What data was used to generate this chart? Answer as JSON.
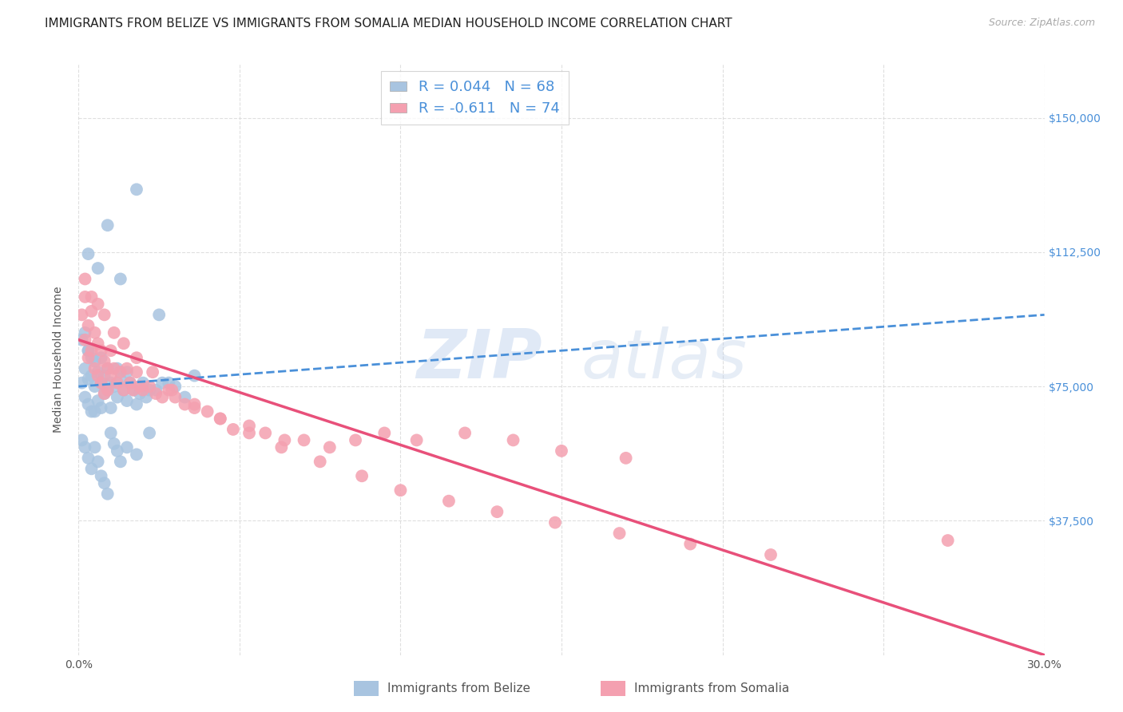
{
  "title": "IMMIGRANTS FROM BELIZE VS IMMIGRANTS FROM SOMALIA MEDIAN HOUSEHOLD INCOME CORRELATION CHART",
  "source": "Source: ZipAtlas.com",
  "ylabel": "Median Household Income",
  "xlim": [
    0.0,
    0.3
  ],
  "ylim": [
    0,
    165000
  ],
  "xticks": [
    0.0,
    0.05,
    0.1,
    0.15,
    0.2,
    0.25,
    0.3
  ],
  "xticklabels": [
    "0.0%",
    "",
    "",
    "",
    "",
    "",
    "30.0%"
  ],
  "ytick_positions": [
    37500,
    75000,
    112500,
    150000
  ],
  "ytick_labels": [
    "$37,500",
    "$75,000",
    "$112,500",
    "$150,000"
  ],
  "belize_color": "#a8c4e0",
  "somalia_color": "#f4a0b0",
  "belize_line_color": "#4a90d9",
  "somalia_line_color": "#e8507a",
  "belize_R": 0.044,
  "belize_N": 68,
  "somalia_R": -0.611,
  "somalia_N": 74,
  "legend_label_belize": "Immigrants from Belize",
  "legend_label_somalia": "Immigrants from Somalia",
  "watermark_zip": "ZIP",
  "watermark_atlas": "atlas",
  "background_color": "#ffffff",
  "grid_color": "#d8d8d8",
  "title_fontsize": 11,
  "axis_label_fontsize": 10,
  "tick_fontsize": 10,
  "legend_fontsize": 13,
  "source_fontsize": 9,
  "belize_line_y0": 75000,
  "belize_line_y1": 95000,
  "somalia_line_y0": 88000,
  "somalia_line_y1": 0,
  "belize_scatter_x": [
    0.001,
    0.002,
    0.002,
    0.003,
    0.003,
    0.003,
    0.004,
    0.004,
    0.005,
    0.005,
    0.005,
    0.006,
    0.006,
    0.007,
    0.007,
    0.007,
    0.008,
    0.008,
    0.009,
    0.009,
    0.01,
    0.01,
    0.011,
    0.012,
    0.012,
    0.013,
    0.014,
    0.015,
    0.015,
    0.016,
    0.017,
    0.018,
    0.019,
    0.02,
    0.021,
    0.022,
    0.024,
    0.026,
    0.028,
    0.03,
    0.033,
    0.036,
    0.001,
    0.002,
    0.003,
    0.004,
    0.005,
    0.006,
    0.007,
    0.008,
    0.009,
    0.01,
    0.011,
    0.012,
    0.013,
    0.015,
    0.018,
    0.022,
    0.003,
    0.006,
    0.009,
    0.013,
    0.018,
    0.025,
    0.001,
    0.002,
    0.003,
    0.004
  ],
  "belize_scatter_y": [
    76000,
    80000,
    72000,
    85000,
    77000,
    70000,
    78000,
    68000,
    82000,
    75000,
    68000,
    79000,
    71000,
    83000,
    76000,
    69000,
    78000,
    73000,
    80000,
    74000,
    76000,
    69000,
    75000,
    80000,
    72000,
    77000,
    74000,
    79000,
    71000,
    76000,
    74000,
    70000,
    73000,
    76000,
    72000,
    74000,
    74000,
    76000,
    76000,
    75000,
    72000,
    78000,
    60000,
    58000,
    55000,
    52000,
    58000,
    54000,
    50000,
    48000,
    45000,
    62000,
    59000,
    57000,
    54000,
    58000,
    56000,
    62000,
    112000,
    108000,
    120000,
    105000,
    130000,
    95000,
    88000,
    90000,
    85000,
    83000
  ],
  "somalia_scatter_x": [
    0.001,
    0.002,
    0.002,
    0.003,
    0.003,
    0.004,
    0.004,
    0.005,
    0.005,
    0.006,
    0.006,
    0.007,
    0.007,
    0.008,
    0.008,
    0.009,
    0.009,
    0.01,
    0.01,
    0.011,
    0.012,
    0.013,
    0.014,
    0.015,
    0.016,
    0.017,
    0.018,
    0.019,
    0.02,
    0.022,
    0.024,
    0.026,
    0.028,
    0.03,
    0.033,
    0.036,
    0.04,
    0.044,
    0.048,
    0.053,
    0.058,
    0.064,
    0.07,
    0.078,
    0.086,
    0.095,
    0.105,
    0.12,
    0.135,
    0.15,
    0.17,
    0.27,
    0.002,
    0.004,
    0.006,
    0.008,
    0.011,
    0.014,
    0.018,
    0.023,
    0.029,
    0.036,
    0.044,
    0.053,
    0.063,
    0.075,
    0.088,
    0.1,
    0.115,
    0.13,
    0.148,
    0.168,
    0.19,
    0.215
  ],
  "somalia_scatter_y": [
    95000,
    100000,
    88000,
    92000,
    83000,
    96000,
    85000,
    90000,
    80000,
    87000,
    78000,
    85000,
    76000,
    82000,
    73000,
    80000,
    74000,
    85000,
    78000,
    80000,
    76000,
    79000,
    74000,
    80000,
    76000,
    74000,
    79000,
    75000,
    74000,
    75000,
    73000,
    72000,
    74000,
    72000,
    70000,
    69000,
    68000,
    66000,
    63000,
    64000,
    62000,
    60000,
    60000,
    58000,
    60000,
    62000,
    60000,
    62000,
    60000,
    57000,
    55000,
    32000,
    105000,
    100000,
    98000,
    95000,
    90000,
    87000,
    83000,
    79000,
    74000,
    70000,
    66000,
    62000,
    58000,
    54000,
    50000,
    46000,
    43000,
    40000,
    37000,
    34000,
    31000,
    28000
  ]
}
